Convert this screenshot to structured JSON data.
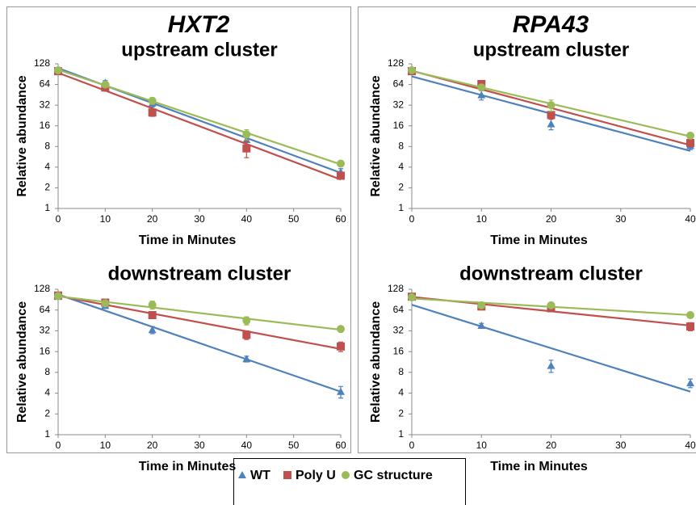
{
  "panel_titles": [
    "HXT2",
    "RPA43"
  ],
  "chart_data": [
    {
      "type": "scatter",
      "title": "upstream cluster",
      "x_label": "Time in Minutes",
      "y_label": "Relative abundance",
      "log_y": true,
      "trendline": "exponential",
      "x": [
        0,
        10,
        20,
        40,
        60
      ],
      "xlim": [
        0,
        60
      ],
      "xticks": [
        0,
        10,
        20,
        30,
        40,
        50,
        60
      ],
      "ylim": [
        1,
        128
      ],
      "yticks": [
        1,
        2,
        4,
        8,
        16,
        32,
        64,
        128
      ],
      "series": [
        {
          "name": "WT",
          "color": "#4f81bd",
          "marker": "triangle",
          "values": [
            105,
            68,
            34,
            10,
            3.4
          ],
          "errors": [
            5,
            5,
            4,
            1.5,
            0.4
          ]
        },
        {
          "name": "Poly U",
          "color": "#c0504d",
          "marker": "square",
          "values": [
            100,
            58,
            25,
            7.5,
            3
          ],
          "errors": [
            5,
            7,
            3,
            2,
            0.3
          ]
        },
        {
          "name": "GC structure",
          "color": "#9bbb59",
          "marker": "circle",
          "values": [
            103,
            64,
            37,
            12,
            4.5
          ],
          "errors": [
            5,
            4,
            4,
            2,
            0.4
          ]
        }
      ]
    },
    {
      "type": "scatter",
      "title": "upstream cluster",
      "x_label": "Time in Minutes",
      "y_label": "Relative abundance",
      "log_y": true,
      "trendline": "exponential",
      "x": [
        0,
        10,
        20,
        40
      ],
      "xlim": [
        0,
        40
      ],
      "xticks": [
        0,
        10,
        20,
        30,
        40
      ],
      "ylim": [
        1,
        128
      ],
      "yticks": [
        1,
        2,
        4,
        8,
        16,
        32,
        64,
        128
      ],
      "series": [
        {
          "name": "WT",
          "color": "#4f81bd",
          "marker": "triangle",
          "values": [
            100,
            45,
            17,
            8.2
          ],
          "errors": [
            5,
            7,
            3,
            1
          ]
        },
        {
          "name": "Poly U",
          "color": "#c0504d",
          "marker": "square",
          "values": [
            100,
            65,
            23,
            9
          ],
          "errors": [
            5,
            4,
            3,
            1
          ]
        },
        {
          "name": "GC structure",
          "color": "#9bbb59",
          "marker": "circle",
          "values": [
            103,
            58,
            32,
            11.5
          ],
          "errors": [
            5,
            4,
            6,
            1
          ]
        }
      ]
    },
    {
      "type": "scatter",
      "title": "downstream cluster",
      "x_label": "Time in Minutes",
      "y_label": "Relative abundance",
      "log_y": true,
      "trendline": "exponential",
      "x": [
        0,
        10,
        20,
        40,
        60
      ],
      "xlim": [
        0,
        60
      ],
      "xticks": [
        0,
        10,
        20,
        30,
        40,
        50,
        60
      ],
      "ylim": [
        1,
        128
      ],
      "yticks": [
        1,
        2,
        4,
        8,
        16,
        32,
        64,
        128
      ],
      "series": [
        {
          "name": "WT",
          "color": "#4f81bd",
          "marker": "triangle",
          "values": [
            100,
            74,
            33,
            12.5,
            4.2
          ],
          "errors": [
            6,
            5,
            4,
            1.2,
            0.8
          ]
        },
        {
          "name": "Poly U",
          "color": "#c0504d",
          "marker": "square",
          "values": [
            104,
            82,
            54,
            28,
            19
          ],
          "errors": [
            5,
            6,
            4,
            4,
            3
          ]
        },
        {
          "name": "GC structure",
          "color": "#9bbb59",
          "marker": "circle",
          "values": [
            102,
            80,
            76,
            45,
            34
          ],
          "errors": [
            5,
            5,
            10,
            6,
            2
          ]
        }
      ]
    },
    {
      "type": "scatter",
      "title": "downstream cluster",
      "x_label": "Time in Minutes",
      "y_label": "Relative abundance",
      "log_y": true,
      "trendline": "exponential",
      "x": [
        0,
        10,
        20,
        40
      ],
      "xlim": [
        0,
        40
      ],
      "xticks": [
        0,
        10,
        20,
        30,
        40
      ],
      "ylim": [
        1,
        128
      ],
      "yticks": [
        1,
        2,
        4,
        8,
        16,
        32,
        64,
        128
      ],
      "series": [
        {
          "name": "WT",
          "color": "#4f81bd",
          "marker": "triangle",
          "values": [
            100,
            38,
            10,
            5.6
          ],
          "errors": [
            5,
            3,
            2,
            0.8
          ]
        },
        {
          "name": "Poly U",
          "color": "#c0504d",
          "marker": "square",
          "values": [
            100,
            72,
            68,
            37
          ],
          "errors": [
            5,
            5,
            4,
            5
          ]
        },
        {
          "name": "GC structure",
          "color": "#9bbb59",
          "marker": "circle",
          "values": [
            98,
            75,
            75,
            54
          ],
          "errors": [
            5,
            4,
            4,
            3
          ]
        }
      ]
    }
  ]
}
